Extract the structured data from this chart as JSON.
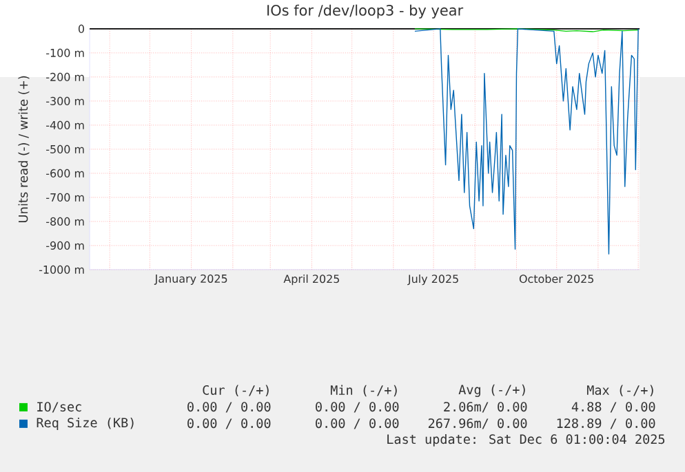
{
  "chart_data": {
    "type": "line",
    "title": "IOs for /dev/loop3 - by year",
    "ylabel": "Units read (-) / write (+)",
    "xlim": [
      "2024-10-17",
      "2025-12-02"
    ],
    "xticks": [
      {
        "value": "2024-11-01",
        "label": null
      },
      {
        "value": "2024-12-01",
        "label": null
      },
      {
        "value": "2025-01-01",
        "label": "January 2025"
      },
      {
        "value": "2025-02-01",
        "label": null
      },
      {
        "value": "2025-03-01",
        "label": null
      },
      {
        "value": "2025-04-01",
        "label": "April 2025"
      },
      {
        "value": "2025-05-01",
        "label": null
      },
      {
        "value": "2025-06-01",
        "label": null
      },
      {
        "value": "2025-07-01",
        "label": "July 2025"
      },
      {
        "value": "2025-08-01",
        "label": null
      },
      {
        "value": "2025-09-01",
        "label": null
      },
      {
        "value": "2025-10-01",
        "label": "October 2025"
      },
      {
        "value": "2025-11-01",
        "label": null
      },
      {
        "value": "2025-12-01",
        "label": null
      }
    ],
    "ylim": [
      -1000,
      0
    ],
    "yticks": [
      {
        "value": -1000,
        "label": "-1000 m"
      },
      {
        "value": -900,
        "label": "-900 m"
      },
      {
        "value": -800,
        "label": "-800 m"
      },
      {
        "value": -700,
        "label": "-700 m"
      },
      {
        "value": -600,
        "label": "-600 m"
      },
      {
        "value": -500,
        "label": "-500 m"
      },
      {
        "value": -400,
        "label": "-400 m"
      },
      {
        "value": -300,
        "label": "-300 m"
      },
      {
        "value": -200,
        "label": "-200 m"
      },
      {
        "value": -100,
        "label": "-100 m"
      },
      0
    ],
    "grid": true,
    "legend": "bottom",
    "marker": "none",
    "line_style": "solid",
    "ref_lines": [
      {
        "axis": "y",
        "value": 0,
        "color": "#000000"
      }
    ],
    "series": [
      {
        "name": "IO/sec",
        "color": "#00cc00",
        "x": [
          "2025-06-17",
          "2025-07-15",
          "2025-08-10",
          "2025-09-01",
          "2025-09-29",
          "2025-10-08",
          "2025-10-16",
          "2025-10-28",
          "2025-11-05",
          "2025-11-20",
          "2025-12-01"
        ],
        "values": [
          0,
          -3,
          -3,
          0,
          -5,
          -10,
          -8,
          -12,
          -5,
          -8,
          -5
        ]
      },
      {
        "name": "Req Size (KB)",
        "color": "#0066b3",
        "x": [
          "2025-06-17",
          "2025-07-06",
          "2025-07-07",
          "2025-07-10",
          "2025-07-12",
          "2025-07-14",
          "2025-07-16",
          "2025-07-17",
          "2025-07-20",
          "2025-07-22",
          "2025-07-24",
          "2025-07-26",
          "2025-07-28",
          "2025-07-31",
          "2025-08-02",
          "2025-08-04",
          "2025-08-06",
          "2025-08-07",
          "2025-08-08",
          "2025-08-11",
          "2025-08-12",
          "2025-08-14",
          "2025-08-16",
          "2025-08-17",
          "2025-08-19",
          "2025-08-21",
          "2025-08-22",
          "2025-08-24",
          "2025-08-26",
          "2025-08-27",
          "2025-08-29",
          "2025-08-31",
          "2025-09-01",
          "2025-09-02",
          "2025-09-29",
          "2025-10-01",
          "2025-10-03",
          "2025-10-06",
          "2025-10-08",
          "2025-10-11",
          "2025-10-13",
          "2025-10-16",
          "2025-10-18",
          "2025-10-22",
          "2025-10-23",
          "2025-10-25",
          "2025-10-28",
          "2025-10-30",
          "2025-11-01",
          "2025-11-04",
          "2025-11-06",
          "2025-11-09",
          "2025-11-11",
          "2025-11-13",
          "2025-11-15",
          "2025-11-17",
          "2025-11-19",
          "2025-11-21",
          "2025-11-23",
          "2025-11-26",
          "2025-11-28",
          "2025-11-29",
          "2025-12-01"
        ],
        "values": [
          -10,
          0,
          -165,
          -565,
          -110,
          -335,
          -255,
          -355,
          -630,
          -355,
          -680,
          -430,
          -735,
          -830,
          -470,
          -715,
          -485,
          -735,
          -185,
          -600,
          -470,
          -680,
          -525,
          -430,
          -715,
          -355,
          -770,
          -525,
          -655,
          -485,
          -505,
          -915,
          -185,
          0,
          -10,
          -145,
          -70,
          -300,
          -165,
          -420,
          -240,
          -335,
          -185,
          -355,
          -220,
          -145,
          -100,
          -200,
          -110,
          -185,
          -90,
          -935,
          -240,
          -485,
          -525,
          -185,
          -10,
          -655,
          -375,
          -110,
          -125,
          -585,
          0
        ]
      }
    ],
    "annotations": [
      "Cur (-/+)",
      "Min (-/+)",
      "Avg (-/+)",
      "Max (-/+)",
      "0.00 / 0.00",
      "0.00 / 0.00",
      "2.06m/ 0.00",
      "4.88 / 0.00",
      "0.00 / 0.00",
      "0.00 / 0.00",
      "267.96m/ 0.00",
      "128.89 / 0.00",
      "Last update: Sat Dec  6 01:00:04 2025"
    ]
  }
}
